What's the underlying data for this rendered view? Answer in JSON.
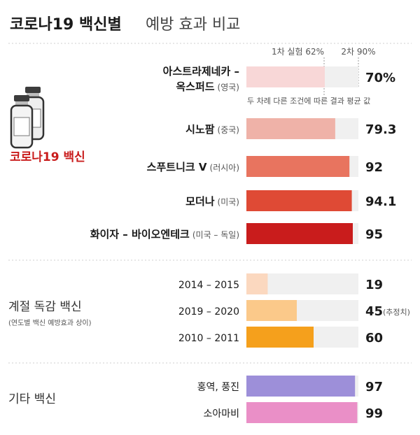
{
  "title": {
    "bold": "코로나19 백신별",
    "rest": "예방 효과 비교"
  },
  "groups": [
    {
      "label": "코로나19 백신",
      "sublabel": ""
    },
    {
      "label": "계절 독감 백신",
      "sublabel": "(연도별 백신 예방효과 상이)"
    },
    {
      "label": "기타 백신",
      "sublabel": ""
    }
  ],
  "annotations": {
    "first_dose": "1차 실험 62%",
    "second_dose": "2차 90%",
    "avg_note": "두 차례 다른 조건에 따른 결과 평균 값"
  },
  "colors": {
    "track": "#f0f0f0",
    "separator": "#cfcfcf",
    "accent_red": "#c91c1c"
  },
  "icons": [
    "vaccine-vials-icon"
  ],
  "chart_data": {
    "type": "bar",
    "orientation": "horizontal",
    "xlim": [
      0,
      100
    ],
    "bars": [
      {
        "name": "아스트라제네카 –",
        "name2": "옥스퍼드",
        "sub": "(영국)",
        "value": 70,
        "display": "70%",
        "note": "",
        "color": "#f8d7d7",
        "style": "bold"
      },
      {
        "name": "시노팜",
        "sub": "(중국)",
        "value": 79.3,
        "display": "79.3",
        "note": "",
        "color": "#efb2a8",
        "style": "bold"
      },
      {
        "name": "스푸트니크 V",
        "sub": "(러시아)",
        "value": 92,
        "display": "92",
        "note": "",
        "color": "#e8745f",
        "style": "bold"
      },
      {
        "name": "모더나",
        "sub": "(미국)",
        "value": 94.1,
        "display": "94.1",
        "note": "",
        "color": "#df4a35",
        "style": "bold"
      },
      {
        "name": "화이자 – 바이오엔테크",
        "sub": "(미국 – 독일)",
        "value": 95,
        "display": "95",
        "note": "",
        "color": "#c91c1c",
        "style": "bold"
      },
      {
        "name": "2014 – 2015",
        "sub": "",
        "value": 19,
        "display": "19",
        "note": "",
        "color": "#fbd8bf",
        "style": "year"
      },
      {
        "name": "2019 – 2020",
        "sub": "",
        "value": 45,
        "display": "45",
        "note": "(추정치)",
        "color": "#fbc98a",
        "style": "year"
      },
      {
        "name": "2010 – 2011",
        "sub": "",
        "value": 60,
        "display": "60",
        "note": "",
        "color": "#f5a01c",
        "style": "year"
      },
      {
        "name": "홍역, 풍진",
        "sub": "",
        "value": 97,
        "display": "97",
        "note": "",
        "color": "#9d8fd9",
        "style": "year"
      },
      {
        "name": "소아마비",
        "sub": "",
        "value": 99,
        "display": "99",
        "note": "",
        "color": "#ea8fc7",
        "style": "year"
      }
    ]
  }
}
